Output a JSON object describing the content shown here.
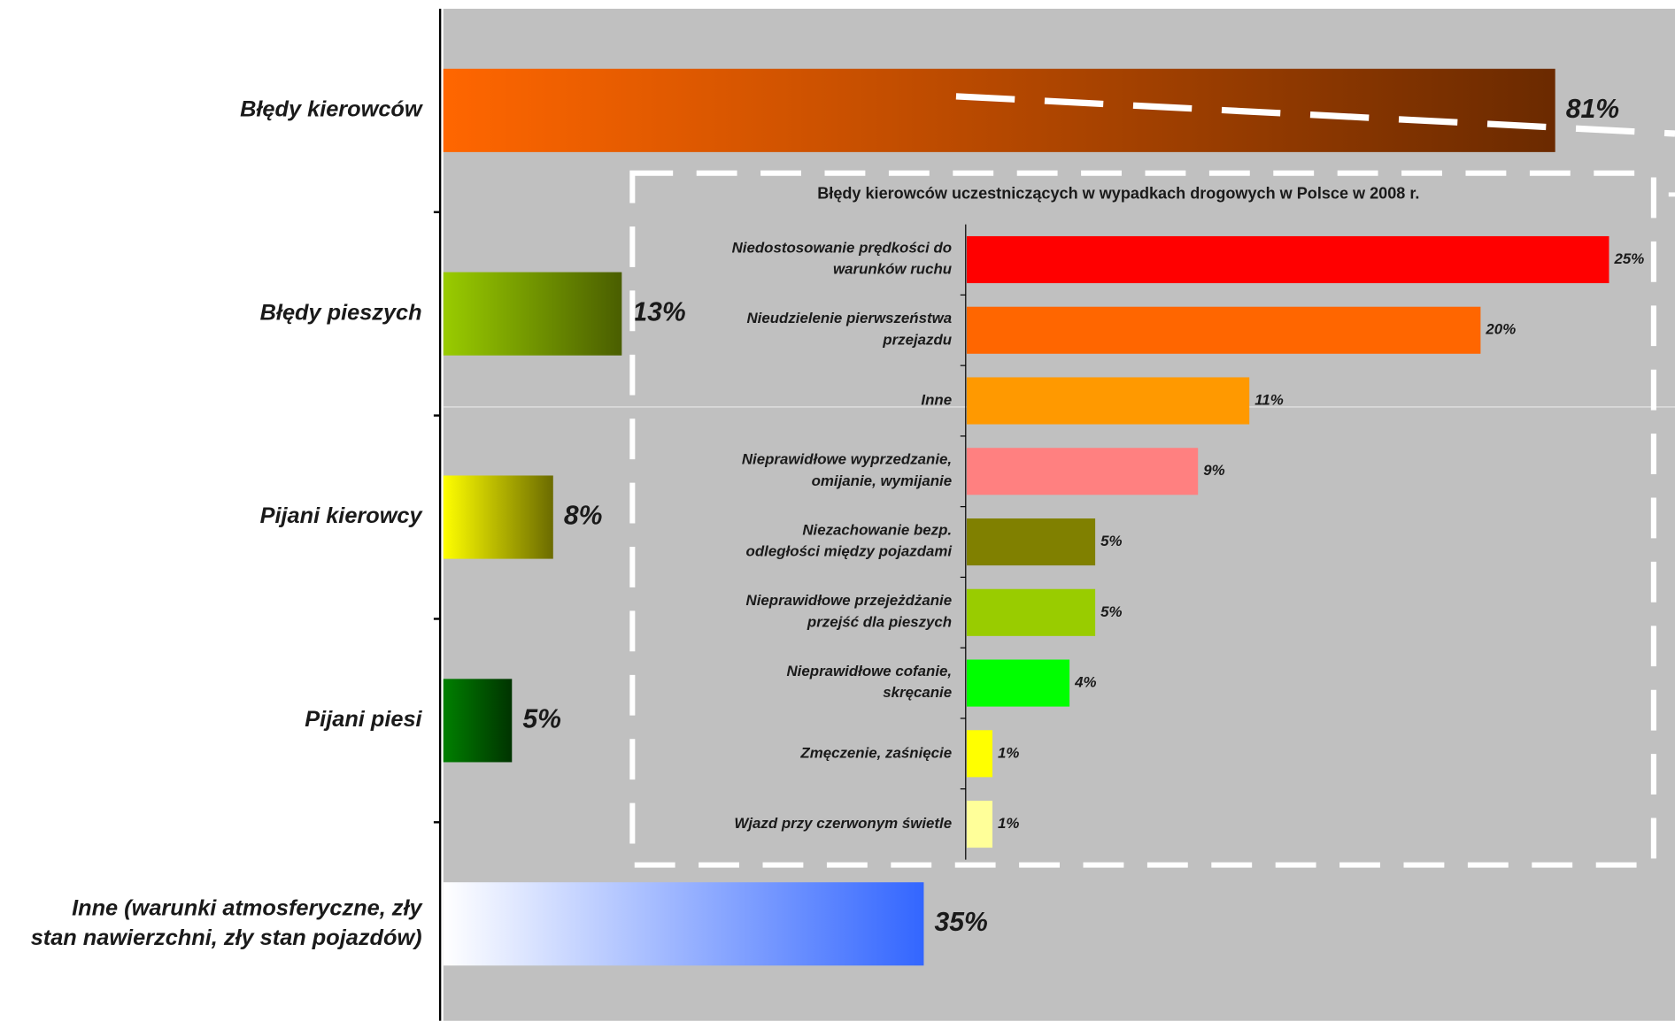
{
  "chart_data": [
    {
      "type": "bar",
      "orientation": "horizontal",
      "categories": [
        "Błędy kierowców",
        "Błędy pieszych",
        "Pijani kierowcy",
        "Pijani piesi",
        "Inne (warunki atmosferyczne, zły\nstan nawierzchni, zły stan pojazdów)"
      ],
      "values": [
        81,
        13,
        8,
        5,
        35
      ],
      "value_labels": [
        "81%",
        "13%",
        "8%",
        "5%",
        "35%"
      ],
      "colors": [
        [
          "#ff6600",
          "#6b2a00"
        ],
        [
          "#99cc00",
          "#4a5e00"
        ],
        [
          "#ffff00",
          "#6b6b00"
        ],
        [
          "#008000",
          "#003300"
        ],
        [
          "#ffffff",
          "#3366ff"
        ]
      ]
    },
    {
      "type": "bar",
      "orientation": "horizontal",
      "title": "Błędy kierowców uczestniczących w wypadkach drogowych w Polsce w 2008 r.",
      "categories": [
        "Niedostosowanie prędkości do\nwarunków ruchu",
        "Nieudzielenie pierwszeństwa\nprzejazdu",
        "Inne",
        "Nieprawidłowe wyprzedzanie,\nomijanie, wymijanie",
        "Niezachowanie bezp.\nodległości między pojazdami",
        "Nieprawidłowe przejeżdżanie\nprzejść dla pieszych",
        "Nieprawidłowe cofanie,\nskręcanie",
        "Zmęczenie, zaśnięcie",
        "Wjazd przy czerwonym świetle"
      ],
      "values": [
        25,
        20,
        11,
        9,
        5,
        5,
        4,
        1,
        1
      ],
      "value_labels": [
        "25%",
        "20%",
        "11%",
        "9%",
        "5%",
        "5%",
        "4%",
        "1%",
        "1%"
      ],
      "colors": [
        "#ff0000",
        "#ff6600",
        "#ff9900",
        "#ff8080",
        "#808000",
        "#99cc00",
        "#00ff00",
        "#ffff00",
        "#ffff99"
      ]
    }
  ]
}
